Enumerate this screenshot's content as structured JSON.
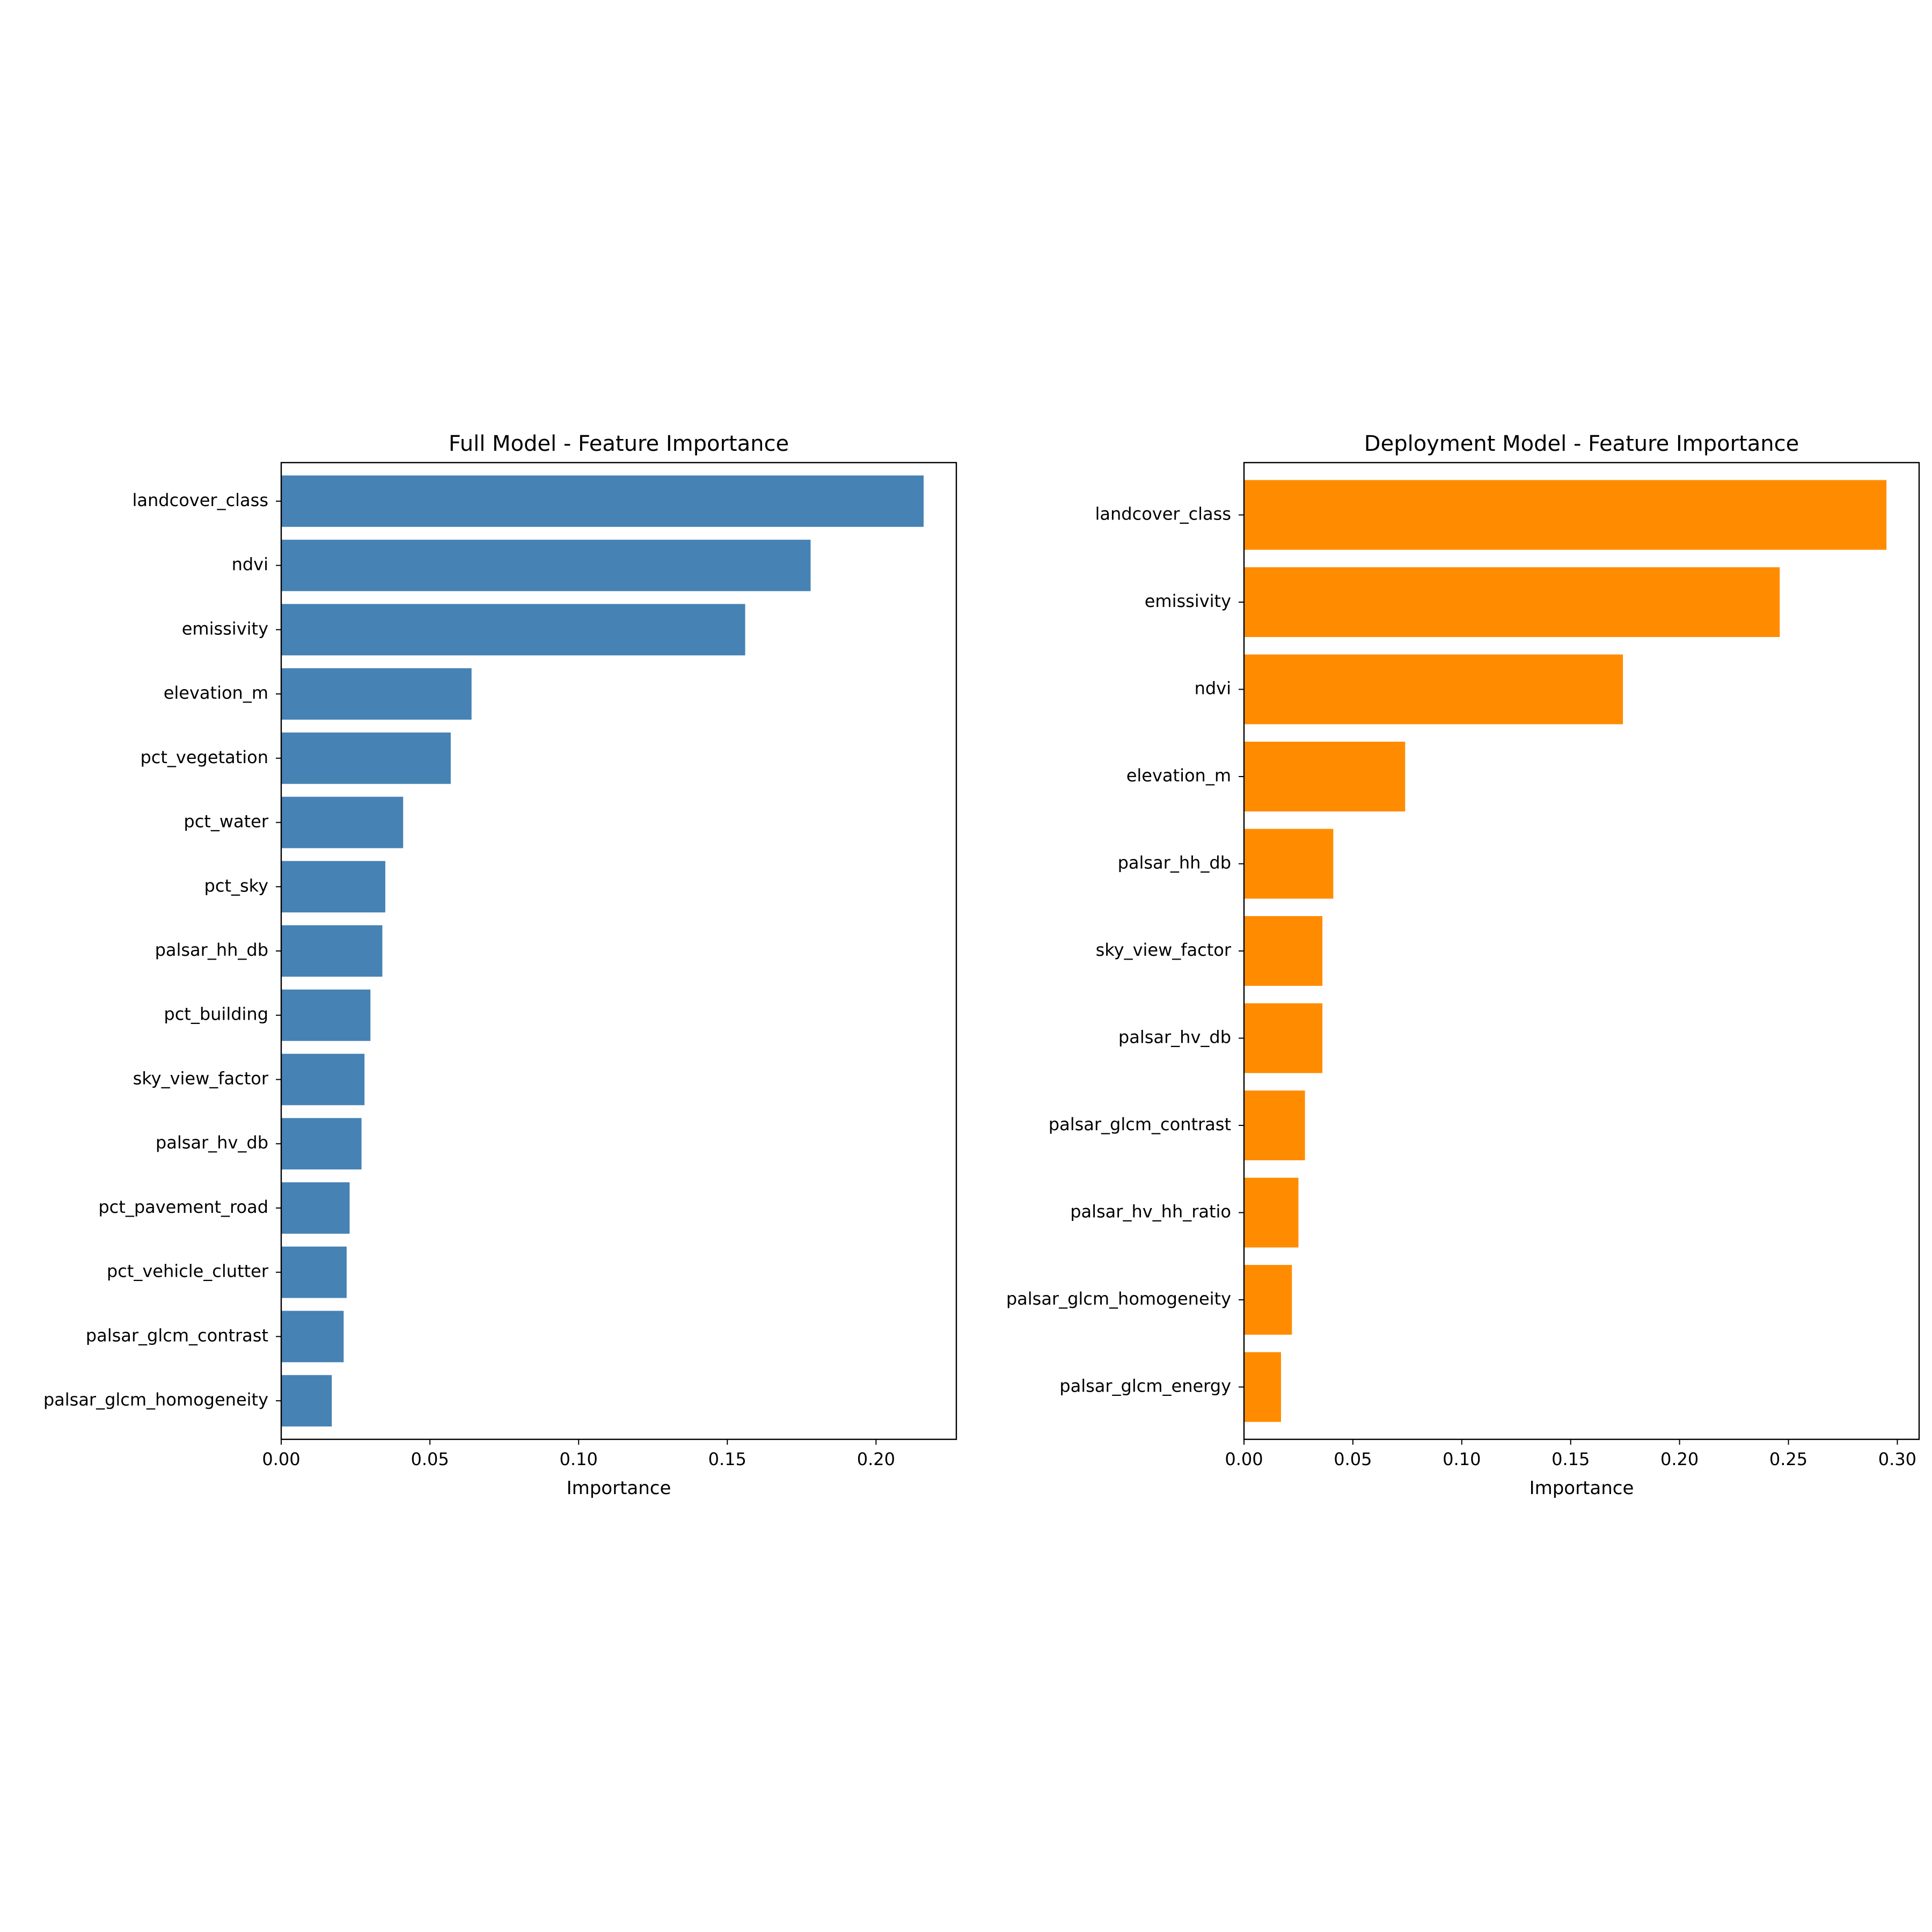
{
  "chart_data": [
    {
      "type": "bar",
      "orientation": "horizontal",
      "title": "Full Model - Feature Importance",
      "xlabel": "Importance",
      "ylabel": "",
      "xlim": [
        0,
        0.227
      ],
      "xticks": [
        "0.00",
        "0.05",
        "0.10",
        "0.15",
        "0.20"
      ],
      "xtick_values": [
        0,
        0.05,
        0.1,
        0.15,
        0.2
      ],
      "color": "#4682b4",
      "categories": [
        "landcover_class",
        "ndvi",
        "emissivity",
        "elevation_m",
        "pct_vegetation",
        "pct_water",
        "pct_sky",
        "palsar_hh_db",
        "pct_building",
        "sky_view_factor",
        "palsar_hv_db",
        "pct_pavement_road",
        "pct_vehicle_clutter",
        "palsar_glcm_contrast",
        "palsar_glcm_homogeneity"
      ],
      "values": [
        0.216,
        0.178,
        0.156,
        0.064,
        0.057,
        0.041,
        0.035,
        0.034,
        0.03,
        0.028,
        0.027,
        0.023,
        0.022,
        0.021,
        0.017
      ]
    },
    {
      "type": "bar",
      "orientation": "horizontal",
      "title": "Deployment Model - Feature Importance",
      "xlabel": "Importance",
      "ylabel": "",
      "xlim": [
        0,
        0.31
      ],
      "xticks": [
        "0.00",
        "0.05",
        "0.10",
        "0.15",
        "0.20",
        "0.25",
        "0.30"
      ],
      "xtick_values": [
        0,
        0.05,
        0.1,
        0.15,
        0.2,
        0.25,
        0.3
      ],
      "color": "#ff8c00",
      "categories": [
        "landcover_class",
        "emissivity",
        "ndvi",
        "elevation_m",
        "palsar_hh_db",
        "sky_view_factor",
        "palsar_hv_db",
        "palsar_glcm_contrast",
        "palsar_hv_hh_ratio",
        "palsar_glcm_homogeneity",
        "palsar_glcm_energy"
      ],
      "values": [
        0.295,
        0.246,
        0.174,
        0.074,
        0.041,
        0.036,
        0.036,
        0.028,
        0.025,
        0.022,
        0.017
      ]
    }
  ]
}
